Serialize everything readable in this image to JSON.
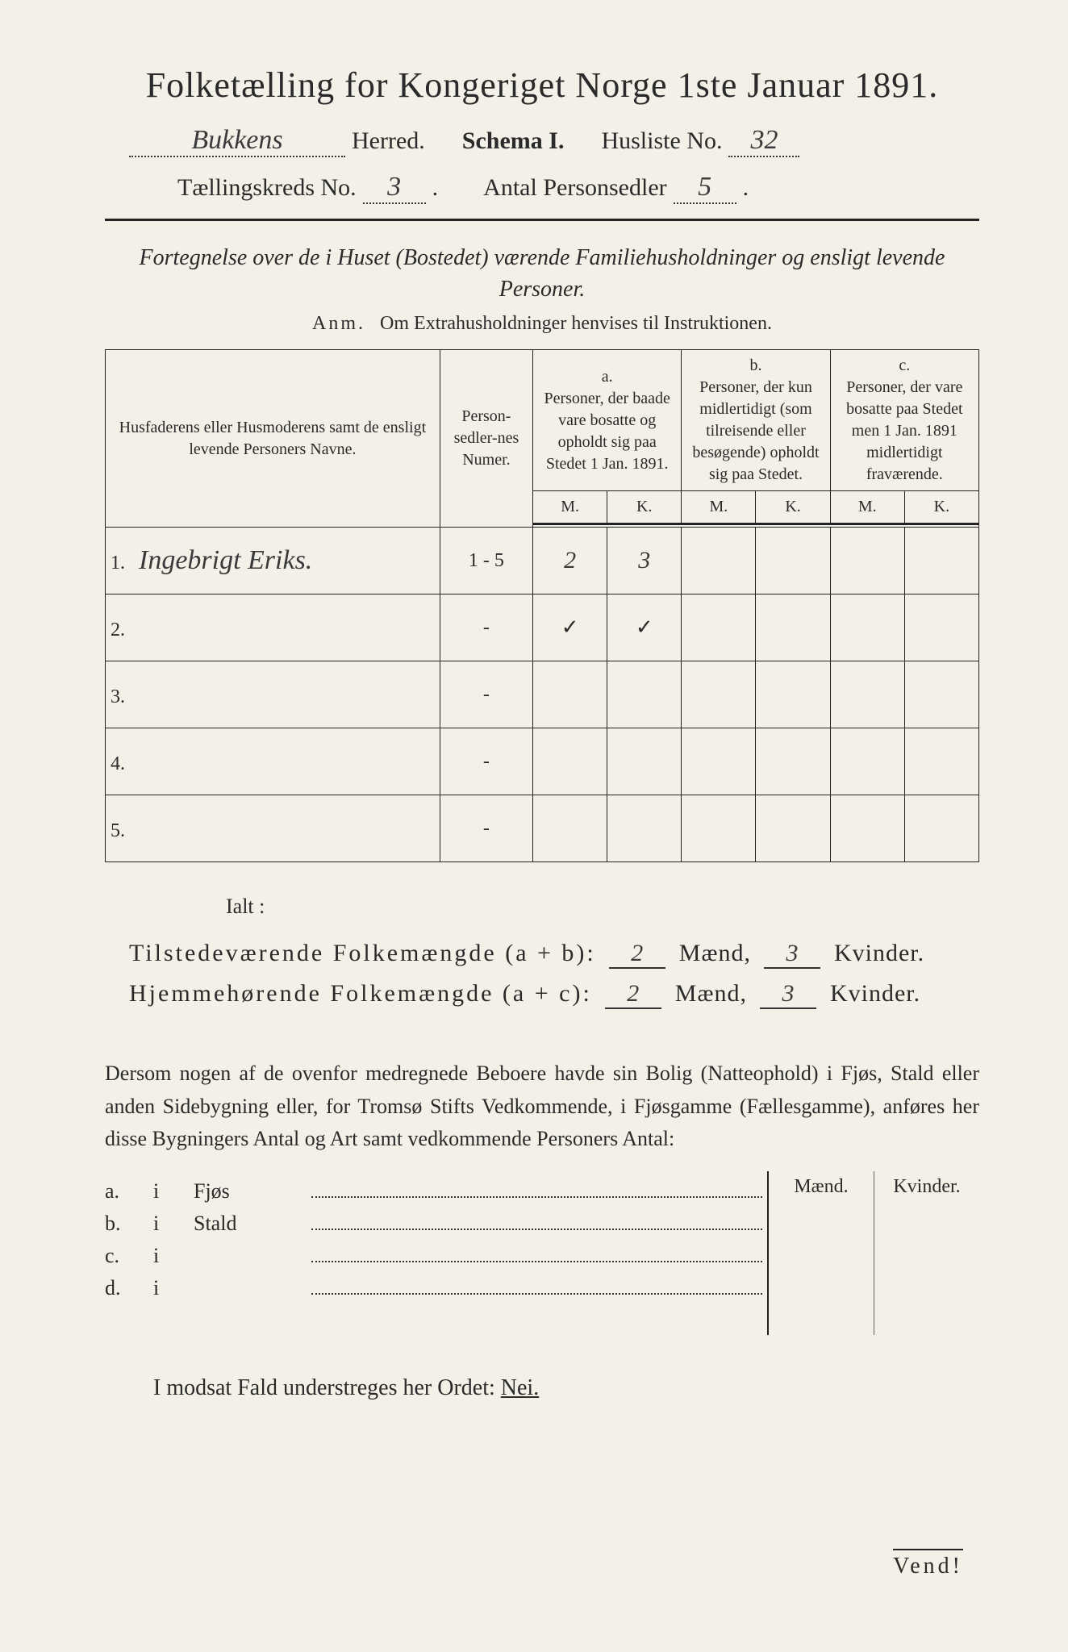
{
  "title": "Folketælling for Kongeriget Norge 1ste Januar 1891.",
  "header": {
    "herred_hw": "Bukkens",
    "herred_lbl": "Herred.",
    "schema_lbl": "Schema I.",
    "husliste_lbl": "Husliste No.",
    "husliste_no": "32",
    "kreds_lbl": "Tællingskreds No.",
    "kreds_no": "3",
    "antal_lbl": "Antal Personsedler",
    "antal_no": "5"
  },
  "subtitle": "Fortegnelse over de i Huset (Bostedet) værende Familiehusholdninger og ensligt levende Personer.",
  "anm_lead": "Anm.",
  "anm_text": "Om Extrahusholdninger henvises til Instruktionen.",
  "table": {
    "h_names": "Husfaderens eller Husmoderens samt de ensligt levende Personers Navne.",
    "h_num": "Person-sedler-nes Numer.",
    "h_a_top": "a.",
    "h_a": "Personer, der baade vare bosatte og opholdt sig paa Stedet 1 Jan. 1891.",
    "h_b_top": "b.",
    "h_b": "Personer, der kun midlertidigt (som tilreisende eller besøgende) opholdt sig paa Stedet.",
    "h_c_top": "c.",
    "h_c": "Personer, der vare bosatte paa Stedet men 1 Jan. 1891 midlertidigt fraværende.",
    "M": "M.",
    "K": "K.",
    "rows": [
      {
        "n": "1.",
        "name": "Ingebrigt Eriks.",
        "num": "1 - 5",
        "aM": "2",
        "aK": "3",
        "bM": "",
        "bK": "",
        "cM": "",
        "cK": ""
      },
      {
        "n": "2.",
        "name": "",
        "num": "-",
        "aM": "✓",
        "aK": "✓",
        "bM": "",
        "bK": "",
        "cM": "",
        "cK": ""
      },
      {
        "n": "3.",
        "name": "",
        "num": "-",
        "aM": "",
        "aK": "",
        "bM": "",
        "bK": "",
        "cM": "",
        "cK": ""
      },
      {
        "n": "4.",
        "name": "",
        "num": "-",
        "aM": "",
        "aK": "",
        "bM": "",
        "bK": "",
        "cM": "",
        "cK": ""
      },
      {
        "n": "5.",
        "name": "",
        "num": "-",
        "aM": "",
        "aK": "",
        "bM": "",
        "bK": "",
        "cM": "",
        "cK": ""
      }
    ]
  },
  "ialt": "Ialt :",
  "sum1": {
    "lbl": "Tilstedeværende Folkemængde (a + b):",
    "m": "2",
    "mlbl": "Mænd,",
    "k": "3",
    "klbl": "Kvinder."
  },
  "sum2": {
    "lbl": "Hjemmehørende Folkemængde (a + c):",
    "m": "2",
    "mlbl": "Mænd,",
    "k": "3",
    "klbl": "Kvinder."
  },
  "para": "Dersom nogen af de ovenfor medregnede Beboere havde sin Bolig (Natteophold) i Fjøs, Stald eller anden Sidebygning eller, for Tromsø Stifts Vedkommende, i Fjøsgamme (Fællesgamme), anføres her disse Bygningers Antal og Art samt vedkommende Personers Antal:",
  "side": {
    "mend": "Mænd.",
    "kvinder": "Kvinder.",
    "rows": [
      {
        "tag": "a.",
        "i": "i",
        "lbl": "Fjøs"
      },
      {
        "tag": "b.",
        "i": "i",
        "lbl": "Stald"
      },
      {
        "tag": "c.",
        "i": "i",
        "lbl": ""
      },
      {
        "tag": "d.",
        "i": "i",
        "lbl": ""
      }
    ]
  },
  "nei_pre": "I modsat Fald understreges her Ordet:",
  "nei": "Nei.",
  "vend": "Vend!"
}
